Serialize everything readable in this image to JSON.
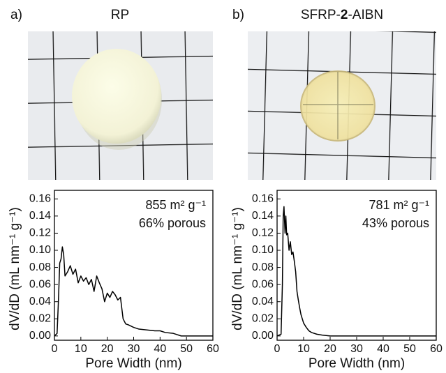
{
  "chart_data": [
    {
      "type": "line",
      "panel_label": "a)",
      "title_parts": [
        {
          "text": "RP"
        }
      ],
      "annotations": [
        "855 m² g⁻¹",
        "66% porous"
      ],
      "x_label": "Pore Width (nm)",
      "y_label": "dV/dD (mL nm⁻¹ g⁻¹)",
      "xlim": [
        0,
        60
      ],
      "ylim": [
        -0.005,
        0.17
      ],
      "xticks": [
        0,
        10,
        20,
        30,
        40,
        50,
        60
      ],
      "yticks": [
        {
          "value": 0,
          "label": "0.00"
        },
        {
          "value": 0.02,
          "label": "0.02"
        },
        {
          "value": 0.04,
          "label": "0.04"
        },
        {
          "value": 0.06,
          "label": "0.06"
        },
        {
          "value": 0.08,
          "label": "0.08"
        },
        {
          "value": 0.1,
          "label": "0.10"
        },
        {
          "value": 0.12,
          "label": "0.12"
        },
        {
          "value": 0.14,
          "label": "0.14"
        },
        {
          "value": 0.16,
          "label": "0.16"
        }
      ],
      "color": "#000000",
      "x": [
        0,
        1,
        1.5,
        2,
        2.5,
        3,
        3.5,
        4,
        5,
        6,
        7,
        8,
        9,
        10,
        11,
        12,
        13,
        14,
        15,
        16,
        17,
        18,
        19,
        20,
        21,
        22,
        23,
        24,
        25,
        26,
        27,
        28,
        30,
        32,
        35,
        38,
        40,
        42,
        45,
        47,
        48,
        50,
        55,
        60
      ],
      "values": [
        0,
        0.003,
        0.04,
        0.085,
        0.09,
        0.104,
        0.095,
        0.07,
        0.075,
        0.082,
        0.072,
        0.078,
        0.062,
        0.07,
        0.064,
        0.068,
        0.06,
        0.066,
        0.052,
        0.07,
        0.062,
        0.055,
        0.04,
        0.05,
        0.045,
        0.052,
        0.048,
        0.042,
        0.045,
        0.02,
        0.014,
        0.013,
        0.01,
        0.008,
        0.007,
        0.006,
        0.006,
        0.004,
        0.003,
        0.001,
        0,
        0,
        0,
        0
      ]
    },
    {
      "type": "line",
      "panel_label": "b)",
      "title_parts": [
        {
          "text": "SFRP-"
        },
        {
          "text": "2",
          "bold": true
        },
        {
          "text": "-AIBN"
        }
      ],
      "annotations": [
        "781 m² g⁻¹",
        "43% porous"
      ],
      "x_label": "Pore Width (nm)",
      "y_label": "dV/dD (mL nm⁻¹ g⁻¹)",
      "xlim": [
        0,
        60
      ],
      "ylim": [
        -0.005,
        0.17
      ],
      "xticks": [
        0,
        10,
        20,
        30,
        40,
        50,
        60
      ],
      "yticks": [
        {
          "value": 0,
          "label": "0.00"
        },
        {
          "value": 0.02,
          "label": "0.02"
        },
        {
          "value": 0.04,
          "label": "0.04"
        },
        {
          "value": 0.06,
          "label": "0.06"
        },
        {
          "value": 0.08,
          "label": "0.08"
        },
        {
          "value": 0.1,
          "label": "0.10"
        },
        {
          "value": 0.12,
          "label": "0.12"
        },
        {
          "value": 0.14,
          "label": "0.14"
        },
        {
          "value": 0.16,
          "label": "0.16"
        }
      ],
      "color": "#000000",
      "x": [
        0,
        1.5,
        2,
        2.3,
        2.6,
        3,
        3.3,
        3.6,
        4,
        4.5,
        5,
        5.5,
        6,
        6.5,
        7,
        7.5,
        8,
        8.5,
        9,
        10,
        11,
        12,
        13,
        15,
        17,
        20,
        30,
        40,
        50,
        60
      ],
      "values": [
        0,
        0.002,
        0.06,
        0.14,
        0.151,
        0.12,
        0.14,
        0.118,
        0.12,
        0.1,
        0.11,
        0.095,
        0.098,
        0.087,
        0.075,
        0.052,
        0.042,
        0.033,
        0.025,
        0.015,
        0.01,
        0.006,
        0.004,
        0.002,
        0.001,
        0,
        0,
        0,
        0,
        0
      ]
    }
  ]
}
